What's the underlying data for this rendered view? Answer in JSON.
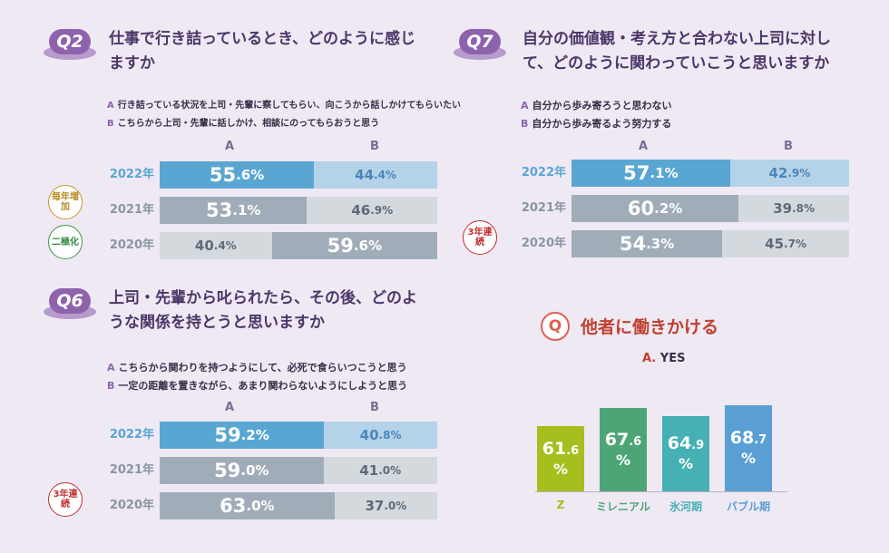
{
  "q2": {
    "badge": "Q2",
    "title_line1": "仕事で行き詰っているとき、どのように感じ",
    "title_line2": "ますか",
    "legend_a_key": "A",
    "legend_a": "行き詰っている状況を上司・先輩に察してもらい、向こうから話しかけてもらいたい",
    "legend_b_key": "B",
    "legend_b": "こちらから上司・先輩に話しかけ、相談にのってもらおうと思う",
    "col_a": "A",
    "col_b": "B",
    "tag1": "毎年増加",
    "tag2": "二極化"
  },
  "q7": {
    "badge": "Q7",
    "title_line1": "自分の価値観・考え方と合わない上司に対し",
    "title_line2": "て、どのように関わっていこうと思いますか",
    "legend_a_key": "A",
    "legend_a": "自分から歩み寄ろうと思わない",
    "legend_b_key": "B",
    "legend_b": "自分から歩み寄るよう努力する",
    "col_a": "A",
    "col_b": "B",
    "tag1": "3年連続"
  },
  "q6": {
    "badge": "Q6",
    "title_line1": "上司・先輩から叱られたら、その後、どのよ",
    "title_line2": "うな関係を持とうと思いますか",
    "legend_a_key": "A",
    "legend_a": "こちらから関わりを持つようにして、必死で食らいつこうと思う",
    "legend_b_key": "B",
    "legend_b": "一定の距離を置きながら、あまり関わらないようにしようと思う",
    "col_a": "A",
    "col_b": "B",
    "tag1": "3年連続"
  },
  "qx": {
    "badge": "Q",
    "title": "他者に働きかける",
    "subtitle_key": "A.",
    "subtitle": "YES"
  },
  "colors": {
    "a2022": "#5aa6d2",
    "b2022": "#b4d2e8",
    "dark": "#a0adb8",
    "light": "#d4d9de",
    "darktext": "#5d6b78",
    "year2022": "#5aa6d2",
    "yearOther": "#8a96a2",
    "z": "#a6bf1e",
    "mil": "#4da575",
    "ice": "#47b0b4",
    "bub": "#5a9fd4"
  },
  "chart_data": [
    {
      "type": "bar",
      "id": "q2",
      "categories": [
        "2022年",
        "2021年",
        "2020年"
      ],
      "series": [
        {
          "name": "A",
          "values": [
            55.6,
            53.1,
            40.4
          ]
        },
        {
          "name": "B",
          "values": [
            44.4,
            46.9,
            59.6
          ]
        }
      ],
      "labels": {
        "A": [
          [
            "55",
            ".6%"
          ],
          [
            "53",
            ".1%"
          ],
          [
            "40",
            ".4%"
          ]
        ],
        "B": [
          [
            "44",
            ".4%"
          ],
          [
            "46",
            ".9%"
          ],
          [
            "59",
            ".6%"
          ]
        ]
      },
      "ylim": [
        0,
        100
      ]
    },
    {
      "type": "bar",
      "id": "q7",
      "categories": [
        "2022年",
        "2021年",
        "2020年"
      ],
      "series": [
        {
          "name": "A",
          "values": [
            57.1,
            60.2,
            54.3
          ]
        },
        {
          "name": "B",
          "values": [
            42.9,
            39.8,
            45.7
          ]
        }
      ],
      "labels": {
        "A": [
          [
            "57",
            ".1%"
          ],
          [
            "60",
            ".2%"
          ],
          [
            "54",
            ".3%"
          ]
        ],
        "B": [
          [
            "42",
            ".9%"
          ],
          [
            "39",
            ".8%"
          ],
          [
            "45",
            ".7%"
          ]
        ]
      },
      "ylim": [
        0,
        100
      ]
    },
    {
      "type": "bar",
      "id": "q6",
      "categories": [
        "2022年",
        "2021年",
        "2020年"
      ],
      "series": [
        {
          "name": "A",
          "values": [
            59.2,
            59.0,
            63.0
          ]
        },
        {
          "name": "B",
          "values": [
            40.8,
            41.0,
            37.0
          ]
        }
      ],
      "labels": {
        "A": [
          [
            "59",
            ".2%"
          ],
          [
            "59",
            ".0%"
          ],
          [
            "63",
            ".0%"
          ]
        ],
        "B": [
          [
            "40",
            ".8%"
          ],
          [
            "41",
            ".0%"
          ],
          [
            "37",
            ".0%"
          ]
        ]
      },
      "ylim": [
        0,
        100
      ]
    },
    {
      "type": "bar",
      "id": "yes",
      "categories": [
        "Z",
        "ミレニアル",
        "氷河期",
        "バブル期"
      ],
      "values": [
        61.6,
        67.6,
        64.9,
        68.7
      ],
      "labels": [
        [
          "61",
          ".6",
          "%"
        ],
        [
          "67",
          ".6",
          "%"
        ],
        [
          "64",
          ".9",
          "%"
        ],
        [
          "68",
          ".7",
          "%"
        ]
      ]
    }
  ]
}
